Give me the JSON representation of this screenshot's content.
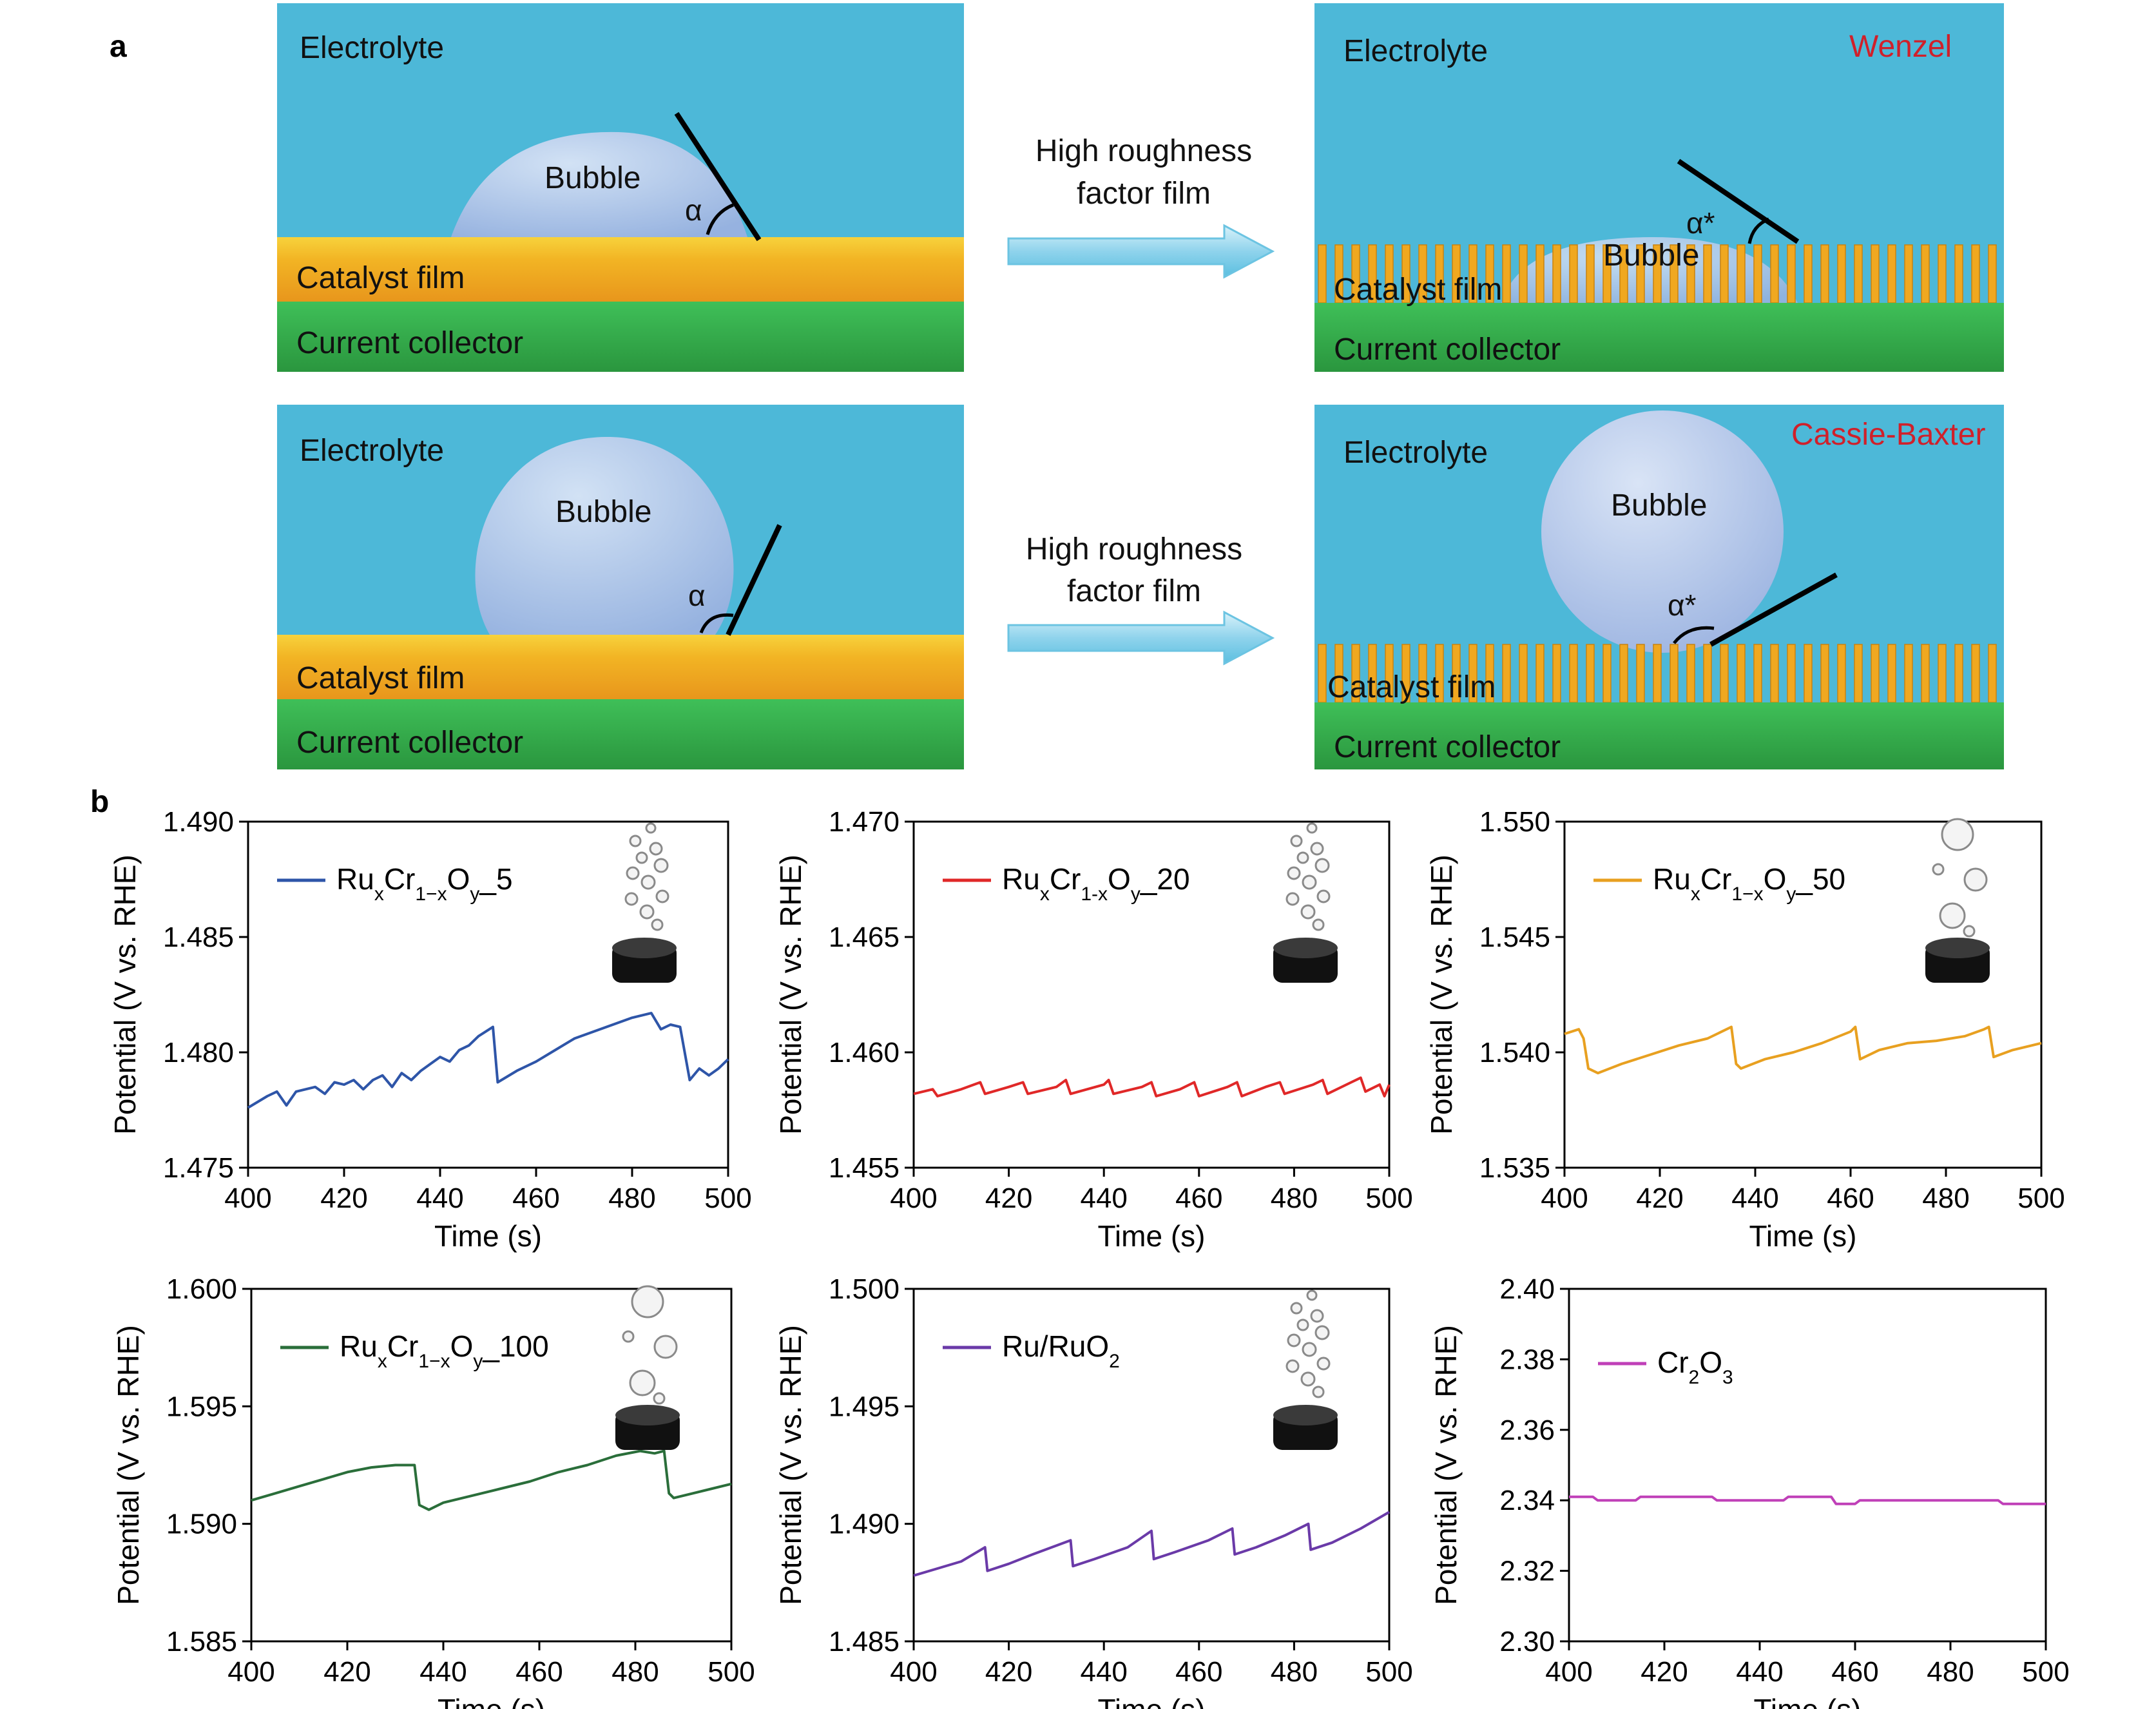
{
  "panel_a": {
    "label": "a",
    "arrow_text_line1": "High roughness",
    "arrow_text_line2": "factor film",
    "scenes": [
      {
        "electrolyte": "Electrolyte",
        "bubble": "Bubble",
        "angle": "α",
        "catalyst": "Catalyst film",
        "collector": "Current collector",
        "model": ""
      },
      {
        "electrolyte": "Electrolyte",
        "bubble": "Bubble",
        "angle": "α*",
        "catalyst": "Catalyst film",
        "collector": "Current collector",
        "model": "Wenzel"
      },
      {
        "electrolyte": "Electrolyte",
        "bubble": "Bubble",
        "angle": "α",
        "catalyst": "Catalyst film",
        "collector": "Current collector",
        "model": ""
      },
      {
        "electrolyte": "Electrolyte",
        "bubble": "Bubble",
        "angle": "α*",
        "catalyst": "Catalyst film",
        "collector": "Current collector",
        "model": "Cassie-Baxter"
      }
    ],
    "colors": {
      "electrolyte": "#4db8d8",
      "catalyst": "#f0a820",
      "collector": "#34a84a",
      "bubble": "#b4c8ec",
      "model_label": "#d0202a"
    }
  },
  "panel_b_label": "b",
  "chart_data": [
    {
      "type": "line",
      "legend": "RuxCr1−xOy_5",
      "legend_sub": {
        "base": "Ru",
        "s1": "x",
        "m": "Cr",
        "s2": "1−x",
        "m2": "O",
        "s3": "y",
        "tail": "_5"
      },
      "color": "#2e55a8",
      "xlabel": "Time (s)",
      "ylabel": "Potential (V vs. RHE)",
      "xlim": [
        400,
        500
      ],
      "ylim": [
        1.475,
        1.49
      ],
      "xticks": [
        "400",
        "420",
        "440",
        "460",
        "480",
        "500"
      ],
      "yticks": [
        "1.475",
        "1.480",
        "1.485",
        "1.490"
      ],
      "x": [
        400,
        404,
        406,
        408,
        410,
        414,
        416,
        418,
        420,
        422,
        424,
        426,
        428,
        430,
        432,
        434,
        436,
        438,
        440,
        442,
        444,
        446,
        448,
        451,
        452,
        456,
        460,
        464,
        468,
        472,
        476,
        480,
        484,
        486,
        488,
        490,
        492,
        494,
        496,
        498,
        500
      ],
      "y": [
        1.4776,
        1.4781,
        1.4783,
        1.4777,
        1.4783,
        1.4785,
        1.4782,
        1.4787,
        1.4786,
        1.4788,
        1.4784,
        1.4788,
        1.479,
        1.4785,
        1.4791,
        1.4788,
        1.4792,
        1.4795,
        1.4798,
        1.4796,
        1.4801,
        1.4803,
        1.4807,
        1.4811,
        1.4787,
        1.4792,
        1.4796,
        1.4801,
        1.4806,
        1.4809,
        1.4812,
        1.4815,
        1.4817,
        1.481,
        1.4812,
        1.4811,
        1.4788,
        1.4793,
        1.479,
        1.4793,
        1.4797
      ],
      "bubble_icon": "small-bubbles"
    },
    {
      "type": "line",
      "legend": "RuxCr1-xOy_20",
      "legend_sub": {
        "base": "Ru",
        "s1": "x",
        "m": "Cr",
        "s2": "1-x",
        "m2": "O",
        "s3": "y",
        "tail": "_20"
      },
      "color": "#e02828",
      "xlabel": "Time (s)",
      "ylabel": "Potential (V vs. RHE)",
      "xlim": [
        400,
        500
      ],
      "ylim": [
        1.455,
        1.47
      ],
      "xticks": [
        "400",
        "420",
        "440",
        "460",
        "480",
        "500"
      ],
      "yticks": [
        "1.455",
        "1.460",
        "1.465",
        "1.470"
      ],
      "x": [
        400,
        404,
        405,
        410,
        414,
        415,
        420,
        423,
        424,
        430,
        432,
        433,
        440,
        441,
        442,
        448,
        450,
        451,
        456,
        459,
        460,
        466,
        468,
        469,
        474,
        477,
        478,
        484,
        486,
        487,
        492,
        494,
        495,
        498,
        499,
        500
      ],
      "y": [
        1.4582,
        1.4584,
        1.4581,
        1.4584,
        1.4587,
        1.4582,
        1.4585,
        1.4587,
        1.4582,
        1.4585,
        1.4588,
        1.4582,
        1.4586,
        1.4588,
        1.4582,
        1.4585,
        1.4587,
        1.4581,
        1.4584,
        1.4587,
        1.4581,
        1.4585,
        1.4587,
        1.4581,
        1.4585,
        1.4587,
        1.4582,
        1.4586,
        1.4588,
        1.4582,
        1.4587,
        1.4589,
        1.4583,
        1.4586,
        1.4581,
        1.4586
      ],
      "bubble_icon": "small-bubbles"
    },
    {
      "type": "line",
      "legend": "RuxCr1−xOy_50",
      "legend_sub": {
        "base": "Ru",
        "s1": "x",
        "m": "Cr",
        "s2": "1−x",
        "m2": "O",
        "s3": "y",
        "tail": "_50"
      },
      "color": "#e8a020",
      "xlabel": "Time (s)",
      "ylabel": "Potential (V vs. RHE)",
      "xlim": [
        400,
        500
      ],
      "ylim": [
        1.535,
        1.55
      ],
      "xticks": [
        "400",
        "420",
        "440",
        "460",
        "480",
        "500"
      ],
      "yticks": [
        "1.535",
        "1.540",
        "1.545",
        "1.550"
      ],
      "x": [
        400,
        403,
        404,
        405,
        407,
        412,
        418,
        424,
        430,
        435,
        436,
        437,
        442,
        448,
        454,
        460,
        461,
        462,
        466,
        472,
        478,
        484,
        488,
        489,
        490,
        494,
        498,
        500
      ],
      "y": [
        1.5408,
        1.541,
        1.5406,
        1.5393,
        1.5391,
        1.5395,
        1.5399,
        1.5403,
        1.5406,
        1.5411,
        1.5395,
        1.5393,
        1.5397,
        1.54,
        1.5404,
        1.5409,
        1.5411,
        1.5397,
        1.5401,
        1.5404,
        1.5405,
        1.5407,
        1.541,
        1.5411,
        1.5398,
        1.5401,
        1.5403,
        1.5404
      ],
      "bubble_icon": "large-bubbles"
    },
    {
      "type": "line",
      "legend": "RuxCr1−xOy_100",
      "legend_sub": {
        "base": "Ru",
        "s1": "x",
        "m": "Cr",
        "s2": "1−x",
        "m2": "O",
        "s3": "y",
        "tail": "_100"
      },
      "color": "#2a6e3a",
      "xlabel": "Time (s)",
      "ylabel": "Potential (V vs. RHE)",
      "xlim": [
        400,
        500
      ],
      "ylim": [
        1.585,
        1.6
      ],
      "xticks": [
        "400",
        "420",
        "440",
        "460",
        "480",
        "500"
      ],
      "yticks": [
        "1.585",
        "1.590",
        "1.595",
        "1.600"
      ],
      "x": [
        400,
        405,
        410,
        415,
        420,
        425,
        430,
        434,
        435,
        437,
        440,
        446,
        452,
        458,
        464,
        470,
        476,
        481,
        484,
        486,
        487,
        488,
        492,
        496,
        500
      ],
      "y": [
        1.591,
        1.5913,
        1.5916,
        1.5919,
        1.5922,
        1.5924,
        1.5925,
        1.5925,
        1.5908,
        1.5906,
        1.5909,
        1.5912,
        1.5915,
        1.5918,
        1.5922,
        1.5925,
        1.5929,
        1.5931,
        1.593,
        1.5931,
        1.5913,
        1.5911,
        1.5913,
        1.5915,
        1.5917
      ],
      "bubble_icon": "large-bubbles"
    },
    {
      "type": "line",
      "legend": "Ru/RuO2",
      "legend_sub": {
        "base": "Ru/RuO",
        "s1": "",
        "m": "",
        "s2": "",
        "m2": "",
        "s3": "",
        "tail": "",
        "sub_tail": "2"
      },
      "color": "#6a3aa8",
      "xlabel": "Time (s)",
      "ylabel": "Potential (V vs. RHE)",
      "xlim": [
        400,
        500
      ],
      "ylim": [
        1.485,
        1.5
      ],
      "xticks": [
        "400",
        "420",
        "440",
        "460",
        "480",
        "500"
      ],
      "yticks": [
        "1.485",
        "1.490",
        "1.495",
        "1.500"
      ],
      "x": [
        400,
        405,
        410,
        415,
        415.5,
        420,
        425,
        433,
        433.5,
        438,
        445,
        450,
        450.5,
        455,
        462,
        467,
        467.5,
        472,
        478,
        483,
        483.5,
        488,
        494,
        500
      ],
      "y": [
        1.4878,
        1.4881,
        1.4884,
        1.489,
        1.488,
        1.4883,
        1.4887,
        1.4893,
        1.4882,
        1.4885,
        1.489,
        1.4897,
        1.4885,
        1.4888,
        1.4893,
        1.4898,
        1.4887,
        1.489,
        1.4895,
        1.49,
        1.4889,
        1.4892,
        1.4898,
        1.4905
      ],
      "bubble_icon": "small-bubbles"
    },
    {
      "type": "line",
      "legend": "Cr2O3",
      "legend_sub": {
        "base": "Cr",
        "s1": "2",
        "m": "O",
        "s2": "3",
        "m2": "",
        "s3": "",
        "tail": ""
      },
      "color": "#c040b8",
      "xlabel": "Time (s)",
      "ylabel": "Potential (V vs. RHE)",
      "xlim": [
        400,
        500
      ],
      "ylim": [
        2.3,
        2.4
      ],
      "xticks": [
        "400",
        "420",
        "440",
        "460",
        "480",
        "500"
      ],
      "yticks": [
        "2.30",
        "2.32",
        "2.34",
        "2.36",
        "2.38",
        "2.40"
      ],
      "x": [
        400,
        405,
        406,
        414,
        415,
        430,
        431,
        445,
        446,
        455,
        456,
        460,
        461,
        475,
        476,
        490,
        491,
        500
      ],
      "y": [
        2.341,
        2.341,
        2.34,
        2.34,
        2.341,
        2.341,
        2.34,
        2.34,
        2.341,
        2.341,
        2.339,
        2.339,
        2.34,
        2.34,
        2.34,
        2.34,
        2.339,
        2.339
      ],
      "bubble_icon": ""
    }
  ]
}
